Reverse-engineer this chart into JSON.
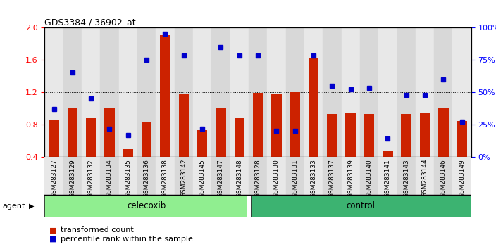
{
  "title": "GDS3384 / 36902_at",
  "samples": [
    "GSM283127",
    "GSM283129",
    "GSM283132",
    "GSM283134",
    "GSM283135",
    "GSM283136",
    "GSM283138",
    "GSM283142",
    "GSM283145",
    "GSM283147",
    "GSM283148",
    "GSM283128",
    "GSM283130",
    "GSM283131",
    "GSM283133",
    "GSM283137",
    "GSM283139",
    "GSM283140",
    "GSM283141",
    "GSM283143",
    "GSM283144",
    "GSM283146",
    "GSM283149"
  ],
  "transformed_count": [
    0.85,
    1.0,
    0.88,
    1.0,
    0.5,
    0.83,
    1.9,
    1.18,
    0.73,
    1.0,
    0.88,
    1.19,
    1.18,
    1.2,
    1.63,
    0.93,
    0.95,
    0.93,
    0.47,
    0.93,
    0.95,
    1.0,
    0.84
  ],
  "percentile_rank_pct": [
    37,
    65,
    45,
    22,
    17,
    75,
    95,
    78,
    22,
    85,
    78,
    78,
    20,
    20,
    78,
    55,
    52,
    53,
    14,
    48,
    48,
    60,
    27
  ],
  "celecoxib_count": 11,
  "control_count": 12,
  "ylim_left": [
    0.4,
    2.0
  ],
  "ylim_right": [
    0,
    100
  ],
  "yticks_left": [
    0.4,
    0.8,
    1.2,
    1.6,
    2.0
  ],
  "yticks_right": [
    0,
    25,
    50,
    75,
    100
  ],
  "bar_color": "#cc2200",
  "dot_color": "#0000cc",
  "plot_bg": "#ffffff",
  "col_bg_odd": "#d8d8d8",
  "col_bg_even": "#e8e8e8",
  "tick_bg": "#c8c8c8",
  "celecoxib_bg": "#90ee90",
  "control_bg": "#3cb371",
  "agent_label": "agent",
  "celecoxib_label": "celecoxib",
  "control_label": "control",
  "legend_bar": "transformed count",
  "legend_dot": "percentile rank within the sample"
}
